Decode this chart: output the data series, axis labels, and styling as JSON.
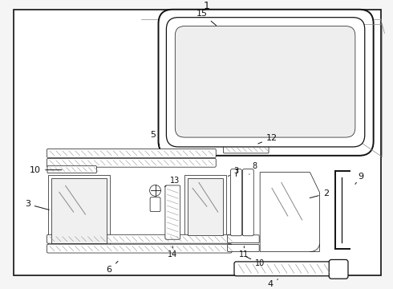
{
  "bg": "#f5f5f5",
  "white": "#ffffff",
  "black": "#111111",
  "gray": "#888888",
  "lgray": "#cccccc",
  "dgray": "#444444"
}
